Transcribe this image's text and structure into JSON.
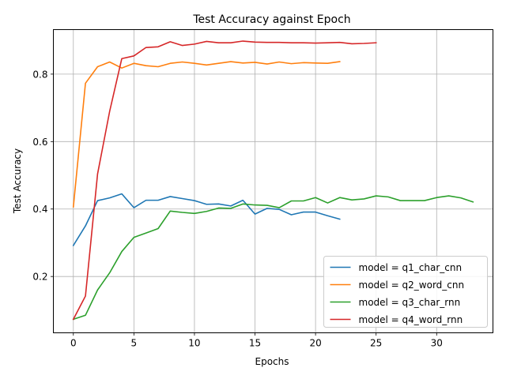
{
  "chart_data": {
    "type": "line",
    "title": "Test Accuracy against Epoch",
    "xlabel": "Epochs",
    "ylabel": "Test Accuracy",
    "xlim": [
      -1.65,
      34.65
    ],
    "ylim": [
      0.033,
      0.932
    ],
    "xticks": [
      0,
      5,
      10,
      15,
      20,
      25,
      30
    ],
    "yticks": [
      0.2,
      0.4,
      0.6,
      0.8
    ],
    "ytick_labels": [
      "0.2",
      "0.4",
      "0.6",
      "0.8"
    ],
    "grid": true,
    "legend_position": "lower-right",
    "series": [
      {
        "name": "model = q1_char_cnn",
        "color": "#1f77b4",
        "x": [
          0,
          1,
          2,
          3,
          4,
          5,
          6,
          7,
          8,
          9,
          10,
          11,
          12,
          13,
          14,
          15,
          16,
          17,
          18,
          19,
          20,
          21,
          22
        ],
        "y": [
          0.292,
          0.35,
          0.425,
          0.433,
          0.445,
          0.404,
          0.426,
          0.426,
          0.437,
          0.431,
          0.425,
          0.414,
          0.415,
          0.409,
          0.426,
          0.385,
          0.402,
          0.399,
          0.383,
          0.391,
          0.391,
          0.38,
          0.37
        ]
      },
      {
        "name": "model = q2_word_cnn",
        "color": "#ff7f0e",
        "x": [
          0,
          1,
          2,
          3,
          4,
          5,
          6,
          7,
          8,
          9,
          10,
          11,
          12,
          13,
          14,
          15,
          16,
          17,
          18,
          19,
          20,
          21,
          22
        ],
        "y": [
          0.406,
          0.773,
          0.822,
          0.836,
          0.818,
          0.832,
          0.825,
          0.822,
          0.832,
          0.836,
          0.832,
          0.827,
          0.832,
          0.837,
          0.833,
          0.835,
          0.83,
          0.836,
          0.831,
          0.834,
          0.833,
          0.832,
          0.837
        ]
      },
      {
        "name": "model = q3_char_rnn",
        "color": "#2ca02c",
        "x": [
          0,
          1,
          2,
          3,
          4,
          5,
          6,
          7,
          8,
          9,
          10,
          11,
          12,
          13,
          14,
          15,
          16,
          17,
          18,
          19,
          20,
          21,
          22,
          23,
          24,
          25,
          26,
          27,
          28,
          29,
          30,
          31,
          32,
          33
        ],
        "y": [
          0.073,
          0.085,
          0.16,
          0.211,
          0.274,
          0.316,
          0.329,
          0.342,
          0.394,
          0.39,
          0.387,
          0.393,
          0.403,
          0.402,
          0.415,
          0.412,
          0.411,
          0.404,
          0.424,
          0.424,
          0.434,
          0.418,
          0.434,
          0.427,
          0.43,
          0.439,
          0.436,
          0.425,
          0.425,
          0.425,
          0.434,
          0.439,
          0.433,
          0.421
        ]
      },
      {
        "name": "model = q4_word_rnn",
        "color": "#d62728",
        "x": [
          0,
          1,
          2,
          3,
          4,
          5,
          6,
          7,
          8,
          9,
          10,
          11,
          12,
          13,
          14,
          15,
          16,
          17,
          18,
          19,
          20,
          21,
          22,
          23,
          24,
          25
        ],
        "y": [
          0.073,
          0.142,
          0.504,
          0.69,
          0.846,
          0.854,
          0.879,
          0.881,
          0.896,
          0.885,
          0.889,
          0.897,
          0.893,
          0.893,
          0.898,
          0.895,
          0.894,
          0.894,
          0.893,
          0.893,
          0.892,
          0.893,
          0.894,
          0.89,
          0.891,
          0.893
        ]
      }
    ]
  }
}
